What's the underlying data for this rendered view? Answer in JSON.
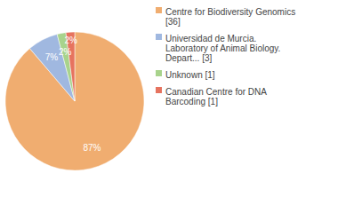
{
  "chart_data": {
    "type": "pie",
    "categories": [
      "Centre for Biodiversity Genomics [36]",
      "Universidad de Murcia. Laboratory of Animal Biology. Depart... [3]",
      "Unknown [1]",
      "Canadian Centre for DNA Barcoding [1]"
    ],
    "values": [
      87,
      7,
      2,
      2
    ],
    "value_labels": [
      "87%",
      "7%",
      "2%",
      "2%"
    ],
    "colors": [
      "#f0ad70",
      "#a0b8e0",
      "#a8d38c",
      "#e6735f"
    ],
    "data_labels": true,
    "legend": "top-right"
  }
}
